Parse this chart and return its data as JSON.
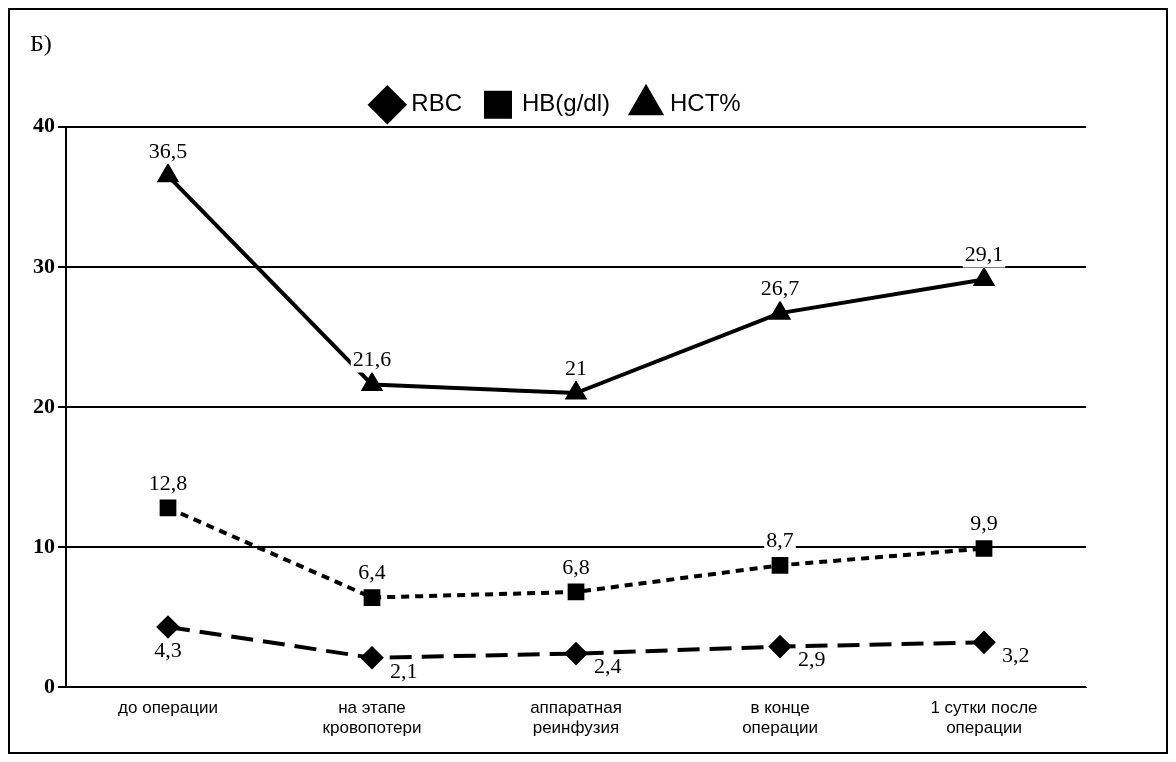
{
  "chart_data": {
    "type": "line",
    "title": "Б)",
    "categories": [
      "до операции",
      "на этапе\nкровопотери",
      "аппаратная\nреинфузия",
      "в конце\nоперации",
      "1 сутки после\nоперации"
    ],
    "series": [
      {
        "name": "RBC",
        "color": "#000000",
        "values": [
          4.3,
          2.1,
          2.4,
          2.9,
          3.2
        ],
        "value_labels": [
          "4,3",
          "2,1",
          "2,4",
          "2,9",
          "3,2"
        ],
        "marker": "diamond",
        "line_style": "dashed"
      },
      {
        "name": "HB(g/dl)",
        "color": "#000000",
        "values": [
          12.8,
          6.4,
          6.8,
          8.7,
          9.9
        ],
        "value_labels": [
          "12,8",
          "6,4",
          "6,8",
          "8,7",
          "9,9"
        ],
        "marker": "square",
        "line_style": "dotted"
      },
      {
        "name": "HCT%",
        "color": "#000000",
        "values": [
          36.5,
          21.6,
          21,
          26.7,
          29.1
        ],
        "value_labels": [
          "36,5",
          "21,6",
          "21",
          "26,7",
          "29,1"
        ],
        "marker": "triangle",
        "line_style": "solid"
      }
    ],
    "ylim": [
      0,
      40
    ],
    "yticks": [
      0,
      10,
      20,
      30,
      40
    ],
    "grid": "y",
    "legend": "top"
  }
}
